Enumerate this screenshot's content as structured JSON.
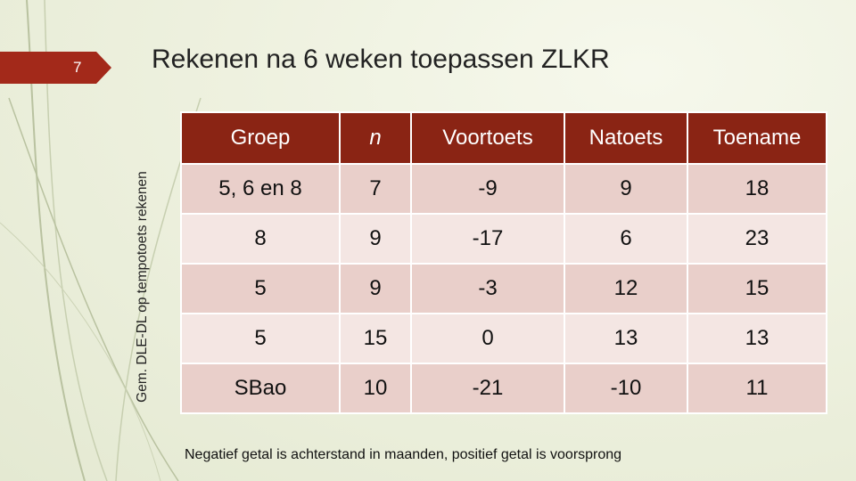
{
  "slide_number": "7",
  "title": "Rekenen na 6 weken toepassen ZLKR",
  "axis_label": "Gem. DLE-DL op tempotoets rekenen",
  "table": {
    "header": [
      "Groep",
      "n",
      "Voortoets",
      "Natoets",
      "Toename"
    ],
    "rows": [
      [
        "5, 6 en 8",
        7,
        -9,
        9,
        18
      ],
      [
        8,
        9,
        -17,
        6,
        23
      ],
      [
        5,
        9,
        -3,
        12,
        15
      ],
      [
        5,
        15,
        0,
        13,
        13
      ],
      [
        "SBao",
        10,
        -21,
        -10,
        11
      ]
    ]
  },
  "footnote": "Negatief getal is achterstand in maanden, positief getal is voorsprong"
}
